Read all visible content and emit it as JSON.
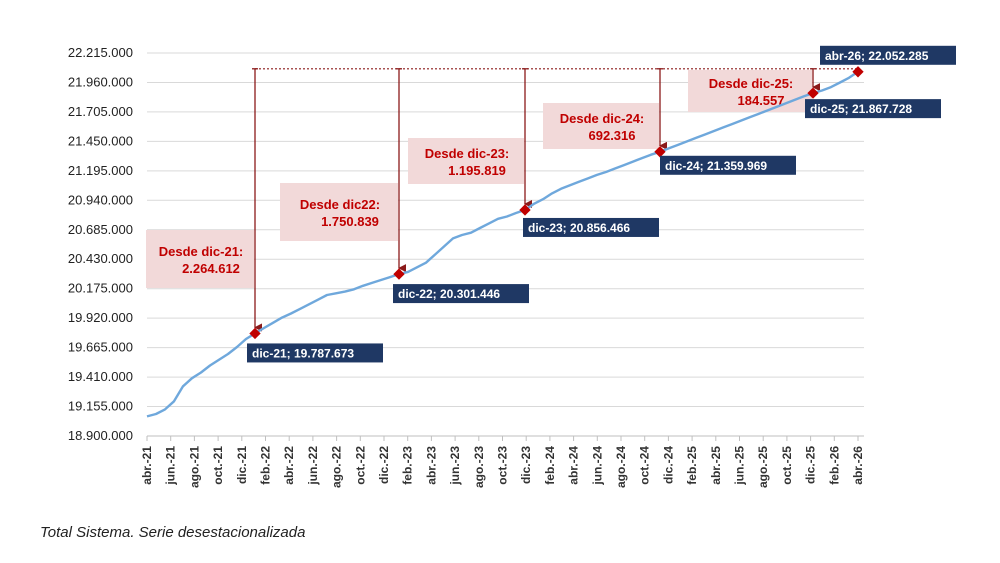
{
  "caption": "Total Sistema. Serie desestacionalizada",
  "chart_data": {
    "type": "line",
    "ylim": [
      18900000,
      22215000
    ],
    "y_ticks": [
      18900000,
      19155000,
      19410000,
      19665000,
      19920000,
      20175000,
      20430000,
      20685000,
      20940000,
      21195000,
      21450000,
      21705000,
      21960000,
      22215000
    ],
    "y_tick_labels": [
      "18.900.000",
      "19.155.000",
      "19.410.000",
      "19.665.000",
      "19.920.000",
      "20.175.000",
      "20.430.000",
      "20.685.000",
      "20.940.000",
      "21.195.000",
      "21.450.000",
      "21.705.000",
      "21.960.000",
      "22.215.000"
    ],
    "x_tick_labels": [
      "abr.-21",
      "jun.-21",
      "ago.-21",
      "oct.-21",
      "dic.-21",
      "feb.-22",
      "abr.-22",
      "jun.-22",
      "ago.-22",
      "oct.-22",
      "dic.-22",
      "feb.-23",
      "abr.-23",
      "jun.-23",
      "ago.-23",
      "oct.-23",
      "dic.-23",
      "feb.-24",
      "abr.-24",
      "jun.-24",
      "ago.-24",
      "oct.-24",
      "dic.-24",
      "feb.-25",
      "abr.-25",
      "jun.-25",
      "ago.-25",
      "oct.-25",
      "dic.-25",
      "feb.-26",
      "abr.-26"
    ],
    "line_color": "#6fa8dc",
    "series": [
      {
        "values": [
          19070000,
          19090000,
          19130000,
          19200000,
          19330000,
          19400000,
          19450000,
          19510000,
          19560000,
          19610000,
          19670000,
          19740000,
          19787673,
          19835000,
          19880000,
          19925000,
          19960000,
          20000000,
          20040000,
          20080000,
          20120000,
          20135000,
          20150000,
          20170000,
          20200000,
          20225000,
          20250000,
          20275000,
          20301446,
          20320000,
          20360000,
          20400000,
          20470000,
          20540000,
          20610000,
          20640000,
          20660000,
          20700000,
          20740000,
          20780000,
          20800000,
          20830000,
          20856466,
          20910000,
          20950000,
          21000000,
          21040000,
          21070000,
          21100000,
          21130000,
          21160000,
          21185000,
          21215000,
          21245000,
          21275000,
          21305000,
          21335000,
          21359969,
          21390000,
          21420000,
          21450000,
          21480000,
          21510000,
          21540000,
          21570000,
          21600000,
          21630000,
          21660000,
          21690000,
          21720000,
          21750000,
          21780000,
          21810000,
          21840000,
          21867728,
          21890000,
          21920000,
          21960000,
          22000000,
          22052285
        ]
      }
    ],
    "points": [
      {
        "index": 12,
        "label": "dic-21; 19.787.673",
        "anno": [
          "Desde dic-21:",
          "2.264.612"
        ]
      },
      {
        "index": 28,
        "label": "dic-22; 20.301.446",
        "anno": [
          "Desde dic22:",
          "1.750.839"
        ]
      },
      {
        "index": 42,
        "label": "dic-23; 20.856.466",
        "anno": [
          "Desde dic-23:",
          "1.195.819"
        ]
      },
      {
        "index": 57,
        "label": "dic-24; 21.359.969",
        "anno": [
          "Desde dic-24:",
          "692.316"
        ]
      },
      {
        "index": 74,
        "label": "dic-25; 21.867.728",
        "anno": [
          "Desde dic-25:",
          "184.557"
        ]
      },
      {
        "index": 79,
        "label": "abr-26; 22.052.285",
        "anno": null
      }
    ],
    "colors": {
      "marker": "#c00000",
      "label_bg": "#1f3864",
      "anno_bg": "#f2d9d9",
      "anno_text": "#c00000",
      "arrow": "#8b1a1a",
      "grid": "#d9d9d9"
    }
  }
}
